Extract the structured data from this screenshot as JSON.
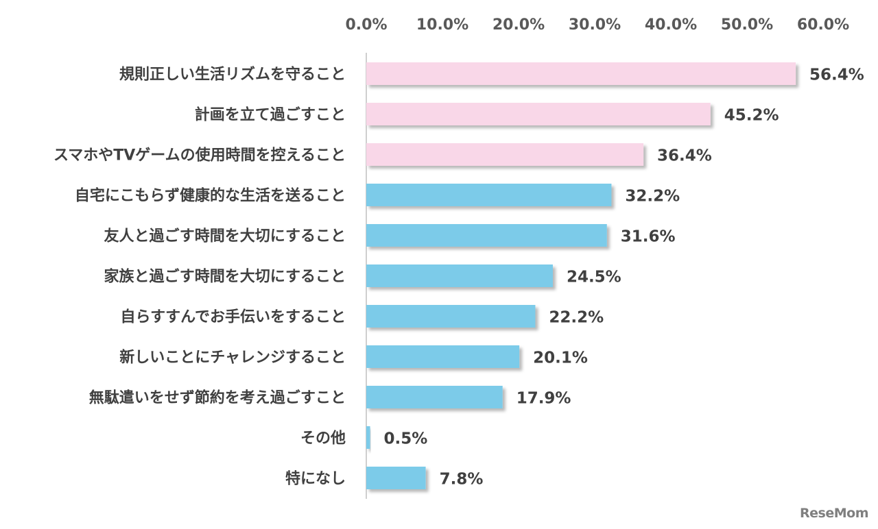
{
  "chart_data": {
    "type": "bar",
    "orientation": "horizontal",
    "categories": [
      "規則正しい生活リズムを守ること",
      "計画を立て過ごすこと",
      "スマホやTVゲームの使用時間を控えること",
      "自宅にこもらず健康的な生活を送ること",
      "友人と過ごす時間を大切にすること",
      "家族と過ごす時間を大切にすること",
      "自らすすんでお手伝いをすること",
      "新しいことにチャレンジすること",
      "無駄遣いをせず節約を考え過ごすこと",
      "その他",
      "特になし"
    ],
    "values": [
      56.4,
      45.2,
      36.4,
      32.2,
      31.6,
      24.5,
      22.2,
      20.1,
      17.9,
      0.5,
      7.8
    ],
    "value_labels": [
      "56.4%",
      "45.2%",
      "36.4%",
      "32.2%",
      "31.6%",
      "24.5%",
      "22.2%",
      "20.1%",
      "17.9%",
      "0.5%",
      "7.8%"
    ],
    "highlight_top_n": 3,
    "xlim": [
      0,
      60
    ],
    "x_ticks": [
      "0.0%",
      "10.0%",
      "20.0%",
      "30.0%",
      "40.0%",
      "50.0%",
      "60.0%"
    ],
    "axis_position": "top",
    "grid": false,
    "colors": {
      "highlight": "#f9d7e8",
      "default": "#7ccbe9",
      "axis": "#bfbfbf",
      "shadow": "#b3b3b3"
    }
  },
  "watermark": "ReseMom"
}
